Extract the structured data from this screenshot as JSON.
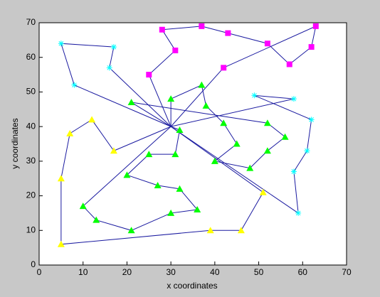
{
  "chart_data": {
    "type": "line",
    "xlabel": "x coordinates",
    "ylabel": "y coordinates",
    "xlim": [
      0,
      70
    ],
    "ylim": [
      0,
      70
    ],
    "xticks": [
      0,
      10,
      20,
      30,
      40,
      50,
      60,
      70
    ],
    "yticks": [
      0,
      10,
      20,
      30,
      40,
      50,
      60,
      70
    ],
    "line_color": "#1a1aa0",
    "depot": {
      "x": 30,
      "y": 40
    },
    "series": [
      {
        "marker": "square",
        "color": "#ff00ff",
        "x": [
          25,
          31,
          28,
          37,
          43,
          52,
          57,
          62,
          63,
          42
        ],
        "y": [
          55,
          62,
          68,
          69,
          67,
          64,
          58,
          63,
          69,
          57
        ]
      },
      {
        "marker": "star",
        "color": "#00ffff",
        "x": [
          8,
          5,
          17,
          16
        ],
        "y": [
          52,
          64,
          63,
          57
        ]
      },
      {
        "marker": "star",
        "color": "#00ffff",
        "x": [
          59,
          58,
          61,
          62,
          49,
          58
        ],
        "y": [
          15,
          27,
          33,
          42,
          49,
          48
        ]
      },
      {
        "marker": "triangle",
        "color": "#ffff00",
        "x": [
          51,
          46,
          39,
          5,
          5,
          7,
          12,
          17
        ],
        "y": [
          21,
          10,
          10,
          6,
          25,
          38,
          42,
          33
        ]
      },
      {
        "marker": "triangle",
        "color": "#00ff00",
        "x": [
          30,
          37,
          38,
          42,
          45,
          40,
          48,
          52,
          56,
          52,
          21
        ],
        "y": [
          48,
          52,
          46,
          41,
          35,
          30,
          28,
          33,
          37,
          41,
          47
        ]
      },
      {
        "marker": "triangle",
        "color": "#00ff00",
        "x": [
          32,
          31,
          25,
          20,
          27,
          32,
          36,
          30,
          21,
          13,
          10
        ],
        "y": [
          39,
          32,
          32,
          26,
          23,
          22,
          16,
          15,
          10,
          13,
          17
        ]
      }
    ]
  }
}
